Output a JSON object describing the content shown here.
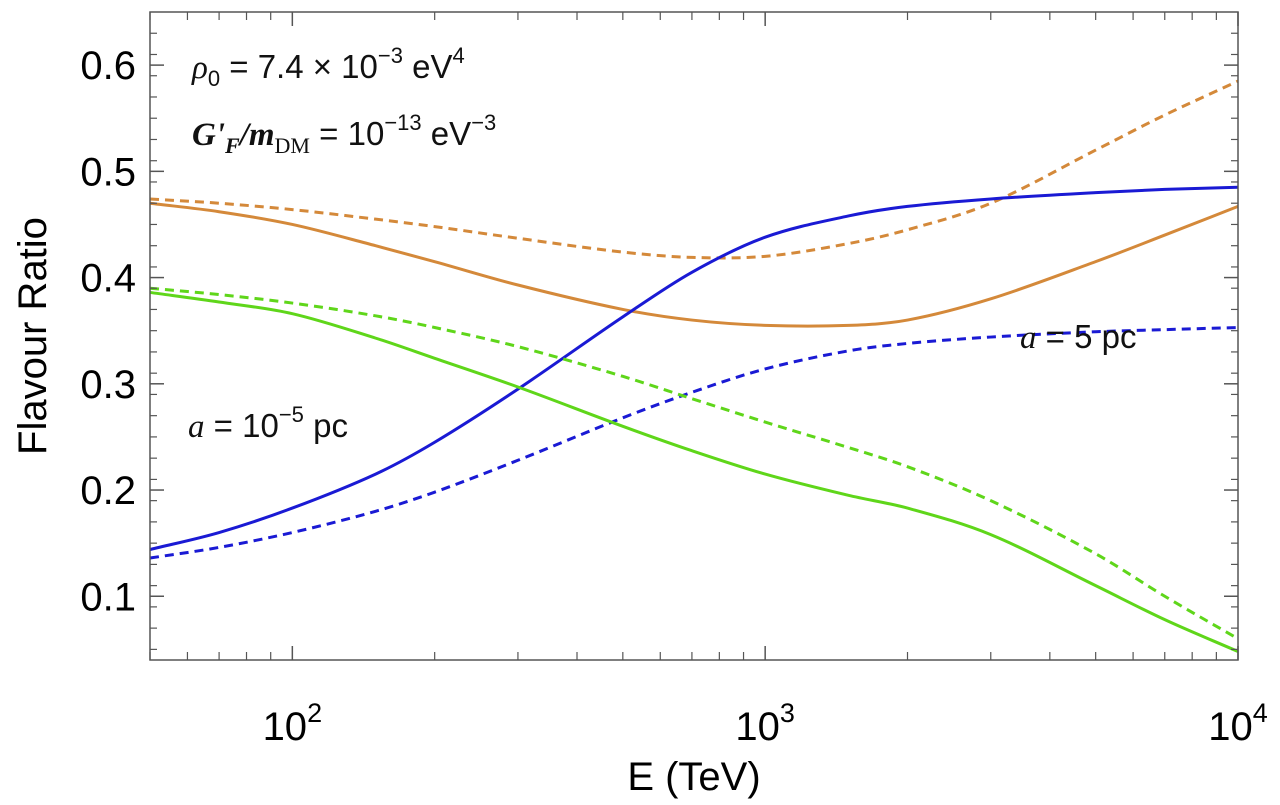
{
  "chart_data": {
    "type": "line",
    "title": "",
    "xlabel": "E (TeV)",
    "ylabel": "Flavour Ratio",
    "xscale": "log",
    "xlim": [
      50,
      10000
    ],
    "ylim": [
      0.04,
      0.65
    ],
    "x_ticks": [
      100,
      1000,
      10000
    ],
    "x_tick_labels": [
      {
        "base": "10",
        "exp": "2"
      },
      {
        "base": "10",
        "exp": "3"
      },
      {
        "base": "10",
        "exp": "4"
      }
    ],
    "y_ticks": [
      0.1,
      0.2,
      0.3,
      0.4,
      0.5,
      0.6
    ],
    "y_tick_labels": [
      "0.1",
      "0.2",
      "0.3",
      "0.4",
      "0.5",
      "0.6"
    ],
    "grid": false,
    "annotations": {
      "rho": {
        "symbol": "ρ",
        "sub": "0",
        "text": " = 7.4  × 10",
        "exp1": "−3",
        "unit": " eV",
        "exp2": "4"
      },
      "coupling": {
        "symbol": "G'",
        "sub1": "F",
        "slash": "/",
        "m": "m",
        "sub2": "DM",
        "text": " = 10",
        "exp1": "−13",
        "unit": " eV",
        "exp2": "−3"
      },
      "a_small": {
        "symbol": "a",
        "text": " = 10",
        "exp": "−5",
        "unit": " pc"
      },
      "a_large": {
        "symbol": "a",
        "text": " = 5 pc"
      }
    },
    "series": [
      {
        "color": "#d4893a",
        "dash": "solid",
        "x": [
          50,
          70,
          100,
          150,
          200,
          300,
          500,
          700,
          1000,
          1500,
          2000,
          3000,
          5000,
          7000,
          10000
        ],
        "y": [
          0.47,
          0.462,
          0.45,
          0.43,
          0.415,
          0.393,
          0.37,
          0.36,
          0.355,
          0.355,
          0.36,
          0.38,
          0.415,
          0.44,
          0.467
        ]
      },
      {
        "color": "#d4893a",
        "dash": "dashed",
        "x": [
          50,
          70,
          100,
          150,
          200,
          300,
          500,
          700,
          1000,
          1500,
          2000,
          3000,
          5000,
          7000,
          10000
        ],
        "y": [
          0.474,
          0.47,
          0.464,
          0.455,
          0.448,
          0.437,
          0.424,
          0.419,
          0.42,
          0.432,
          0.445,
          0.47,
          0.52,
          0.553,
          0.585
        ]
      },
      {
        "color": "#1a1ad4",
        "dash": "solid",
        "x": [
          50,
          70,
          100,
          150,
          200,
          300,
          500,
          700,
          1000,
          1500,
          2000,
          3000,
          5000,
          7000,
          10000
        ],
        "y": [
          0.144,
          0.16,
          0.183,
          0.215,
          0.245,
          0.295,
          0.363,
          0.405,
          0.438,
          0.458,
          0.467,
          0.474,
          0.48,
          0.483,
          0.485
        ]
      },
      {
        "color": "#1a1ad4",
        "dash": "dashed",
        "x": [
          50,
          70,
          100,
          150,
          200,
          300,
          500,
          700,
          1000,
          1500,
          2000,
          3000,
          5000,
          7000,
          10000
        ],
        "y": [
          0.136,
          0.146,
          0.16,
          0.18,
          0.198,
          0.228,
          0.268,
          0.292,
          0.314,
          0.331,
          0.338,
          0.344,
          0.349,
          0.351,
          0.353
        ]
      },
      {
        "color": "#5fd61a",
        "dash": "solid",
        "x": [
          50,
          70,
          100,
          150,
          200,
          300,
          500,
          700,
          1000,
          1500,
          2000,
          3000,
          5000,
          7000,
          10000
        ],
        "y": [
          0.386,
          0.377,
          0.366,
          0.343,
          0.324,
          0.297,
          0.26,
          0.237,
          0.215,
          0.195,
          0.183,
          0.158,
          0.11,
          0.078,
          0.048
        ]
      },
      {
        "color": "#5fd61a",
        "dash": "dashed",
        "x": [
          50,
          70,
          100,
          150,
          200,
          300,
          500,
          700,
          1000,
          1500,
          2000,
          3000,
          5000,
          7000,
          10000
        ],
        "y": [
          0.39,
          0.384,
          0.376,
          0.364,
          0.353,
          0.335,
          0.307,
          0.286,
          0.264,
          0.24,
          0.222,
          0.19,
          0.14,
          0.1,
          0.06
        ]
      }
    ]
  }
}
